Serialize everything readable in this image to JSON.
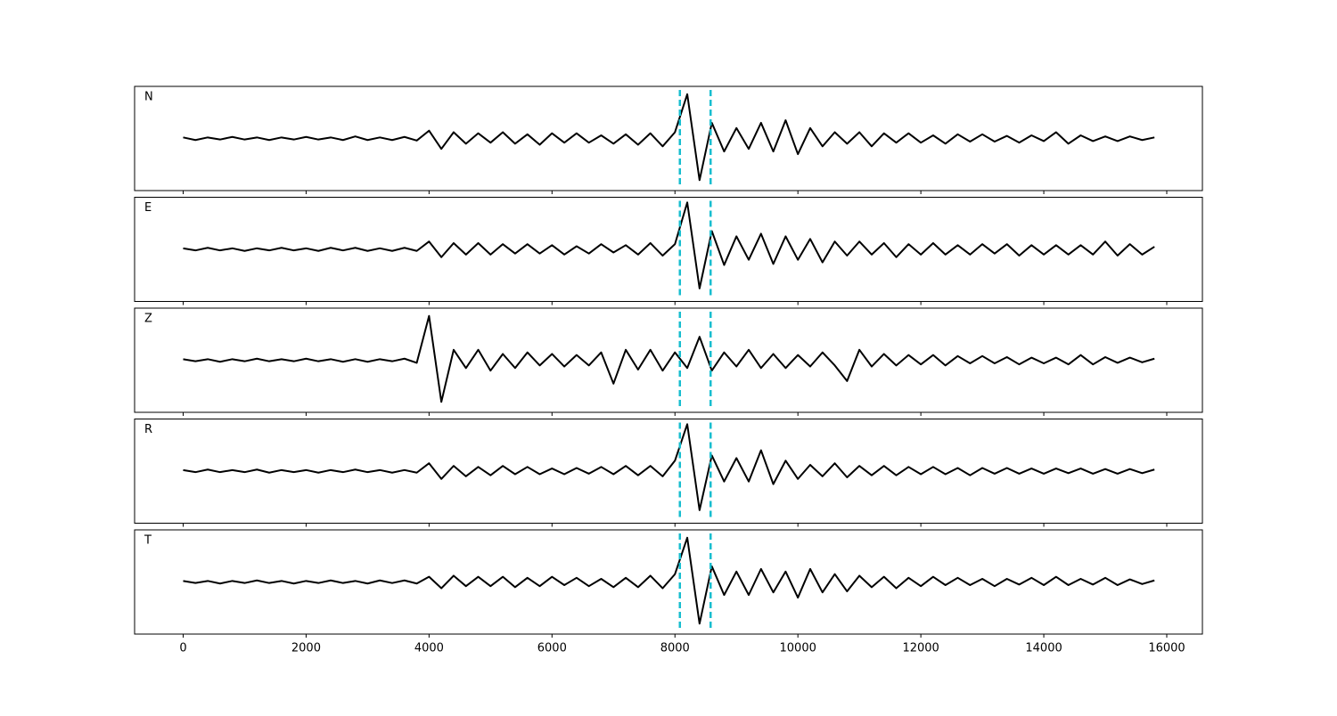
{
  "chart_data": {
    "type": "line",
    "x": [
      0,
      200,
      400,
      600,
      800,
      1000,
      1200,
      1400,
      1600,
      1800,
      2000,
      2200,
      2400,
      2600,
      2800,
      3000,
      3200,
      3400,
      3600,
      3800,
      4000,
      4200,
      4400,
      4600,
      4800,
      5000,
      5200,
      5400,
      5600,
      5800,
      6000,
      6200,
      6400,
      6600,
      6800,
      7000,
      7200,
      7400,
      7600,
      7800,
      8000,
      8200,
      8400,
      8600,
      8800,
      9000,
      9200,
      9400,
      9600,
      9800,
      10000,
      10200,
      10400,
      10600,
      10800,
      11000,
      11200,
      11400,
      11600,
      11800,
      12000,
      12200,
      12400,
      12600,
      12800,
      13000,
      13200,
      13400,
      13600,
      13800,
      14000,
      14200,
      14400,
      14600,
      14800,
      15000,
      15200,
      15400,
      15600,
      15800
    ],
    "xlim": [
      -790,
      16580
    ],
    "xticks": [
      0,
      2000,
      4000,
      6000,
      8000,
      10000,
      12000,
      14000,
      16000
    ],
    "ylim": [
      -1,
      1
    ],
    "vlines": [
      8080,
      8580
    ],
    "vline_color": "#17becf",
    "series": [
      {
        "name": "N",
        "color": "#000000",
        "values": [
          0.02,
          -0.03,
          0.02,
          -0.02,
          0.03,
          -0.02,
          0.02,
          -0.03,
          0.02,
          -0.02,
          0.03,
          -0.02,
          0.02,
          -0.03,
          0.04,
          -0.03,
          0.02,
          -0.03,
          0.03,
          -0.04,
          0.15,
          -0.2,
          0.12,
          -0.1,
          0.1,
          -0.08,
          0.12,
          -0.1,
          0.08,
          -0.12,
          0.1,
          -0.08,
          0.1,
          -0.08,
          0.06,
          -0.1,
          0.08,
          -0.12,
          0.1,
          -0.15,
          0.12,
          0.85,
          -0.8,
          0.3,
          -0.25,
          0.2,
          -0.2,
          0.3,
          -0.25,
          0.35,
          -0.3,
          0.2,
          -0.15,
          0.12,
          -0.1,
          0.12,
          -0.15,
          0.1,
          -0.08,
          0.1,
          -0.08,
          0.06,
          -0.1,
          0.08,
          -0.06,
          0.08,
          -0.06,
          0.05,
          -0.08,
          0.06,
          -0.05,
          0.12,
          -0.1,
          0.06,
          -0.05,
          0.04,
          -0.05,
          0.04,
          -0.03,
          0.02
        ]
      },
      {
        "name": "E",
        "color": "#000000",
        "values": [
          0.02,
          -0.02,
          0.03,
          -0.02,
          0.02,
          -0.03,
          0.02,
          -0.02,
          0.03,
          -0.02,
          0.02,
          -0.03,
          0.03,
          -0.02,
          0.03,
          -0.03,
          0.02,
          -0.03,
          0.03,
          -0.03,
          0.15,
          -0.15,
          0.12,
          -0.1,
          0.12,
          -0.1,
          0.1,
          -0.08,
          0.1,
          -0.08,
          0.08,
          -0.1,
          0.06,
          -0.08,
          0.1,
          -0.06,
          0.08,
          -0.1,
          0.12,
          -0.12,
          0.1,
          0.9,
          -0.75,
          0.35,
          -0.3,
          0.25,
          -0.2,
          0.3,
          -0.28,
          0.25,
          -0.2,
          0.2,
          -0.25,
          0.15,
          -0.12,
          0.15,
          -0.1,
          0.12,
          -0.15,
          0.1,
          -0.1,
          0.12,
          -0.1,
          0.08,
          -0.1,
          0.1,
          -0.08,
          0.1,
          -0.12,
          0.08,
          -0.1,
          0.08,
          -0.1,
          0.08,
          -0.1,
          0.15,
          -0.12,
          0.1,
          -0.1,
          0.05
        ]
      },
      {
        "name": "Z",
        "color": "#000000",
        "values": [
          0.02,
          -0.02,
          0.02,
          -0.03,
          0.02,
          -0.02,
          0.03,
          -0.02,
          0.02,
          -0.02,
          0.03,
          -0.02,
          0.02,
          -0.03,
          0.02,
          -0.03,
          0.02,
          -0.02,
          0.03,
          -0.05,
          0.85,
          -0.8,
          0.2,
          -0.15,
          0.2,
          -0.2,
          0.12,
          -0.15,
          0.15,
          -0.1,
          0.12,
          -0.12,
          0.1,
          -0.1,
          0.15,
          -0.45,
          0.2,
          -0.18,
          0.2,
          -0.2,
          0.15,
          -0.15,
          0.45,
          -0.2,
          0.15,
          -0.12,
          0.2,
          -0.15,
          0.12,
          -0.15,
          0.1,
          -0.12,
          0.15,
          -0.1,
          -0.4,
          0.2,
          -0.12,
          0.12,
          -0.1,
          0.1,
          -0.08,
          0.1,
          -0.1,
          0.08,
          -0.06,
          0.08,
          -0.06,
          0.06,
          -0.08,
          0.05,
          -0.06,
          0.05,
          -0.08,
          0.1,
          -0.08,
          0.06,
          -0.05,
          0.05,
          -0.04,
          0.03
        ]
      },
      {
        "name": "R",
        "color": "#000000",
        "values": [
          0.02,
          -0.02,
          0.03,
          -0.02,
          0.02,
          -0.02,
          0.03,
          -0.03,
          0.02,
          -0.02,
          0.02,
          -0.03,
          0.02,
          -0.02,
          0.03,
          -0.02,
          0.02,
          -0.03,
          0.02,
          -0.03,
          0.15,
          -0.15,
          0.1,
          -0.1,
          0.08,
          -0.08,
          0.1,
          -0.06,
          0.08,
          -0.06,
          0.05,
          -0.06,
          0.06,
          -0.05,
          0.08,
          -0.06,
          0.1,
          -0.08,
          0.1,
          -0.1,
          0.2,
          0.9,
          -0.75,
          0.3,
          -0.2,
          0.25,
          -0.2,
          0.4,
          -0.25,
          0.2,
          -0.15,
          0.12,
          -0.1,
          0.15,
          -0.12,
          0.1,
          -0.08,
          0.1,
          -0.08,
          0.08,
          -0.06,
          0.08,
          -0.06,
          0.06,
          -0.08,
          0.06,
          -0.05,
          0.06,
          -0.05,
          0.05,
          -0.05,
          0.05,
          -0.04,
          0.05,
          -0.05,
          0.04,
          -0.05,
          0.04,
          -0.04,
          0.03
        ]
      },
      {
        "name": "T",
        "color": "#000000",
        "values": [
          0.02,
          -0.02,
          0.02,
          -0.03,
          0.02,
          -0.02,
          0.03,
          -0.02,
          0.02,
          -0.03,
          0.02,
          -0.02,
          0.03,
          -0.02,
          0.02,
          -0.03,
          0.03,
          -0.02,
          0.03,
          -0.03,
          0.1,
          -0.12,
          0.12,
          -0.08,
          0.1,
          -0.08,
          0.1,
          -0.1,
          0.08,
          -0.08,
          0.1,
          -0.06,
          0.08,
          -0.08,
          0.06,
          -0.1,
          0.08,
          -0.1,
          0.12,
          -0.12,
          0.15,
          0.85,
          -0.8,
          0.3,
          -0.25,
          0.2,
          -0.25,
          0.25,
          -0.2,
          0.2,
          -0.3,
          0.25,
          -0.2,
          0.15,
          -0.18,
          0.12,
          -0.1,
          0.1,
          -0.12,
          0.08,
          -0.08,
          0.1,
          -0.06,
          0.08,
          -0.06,
          0.06,
          -0.08,
          0.06,
          -0.05,
          0.08,
          -0.06,
          0.1,
          -0.06,
          0.06,
          -0.05,
          0.08,
          -0.06,
          0.05,
          -0.04,
          0.03
        ]
      }
    ]
  }
}
